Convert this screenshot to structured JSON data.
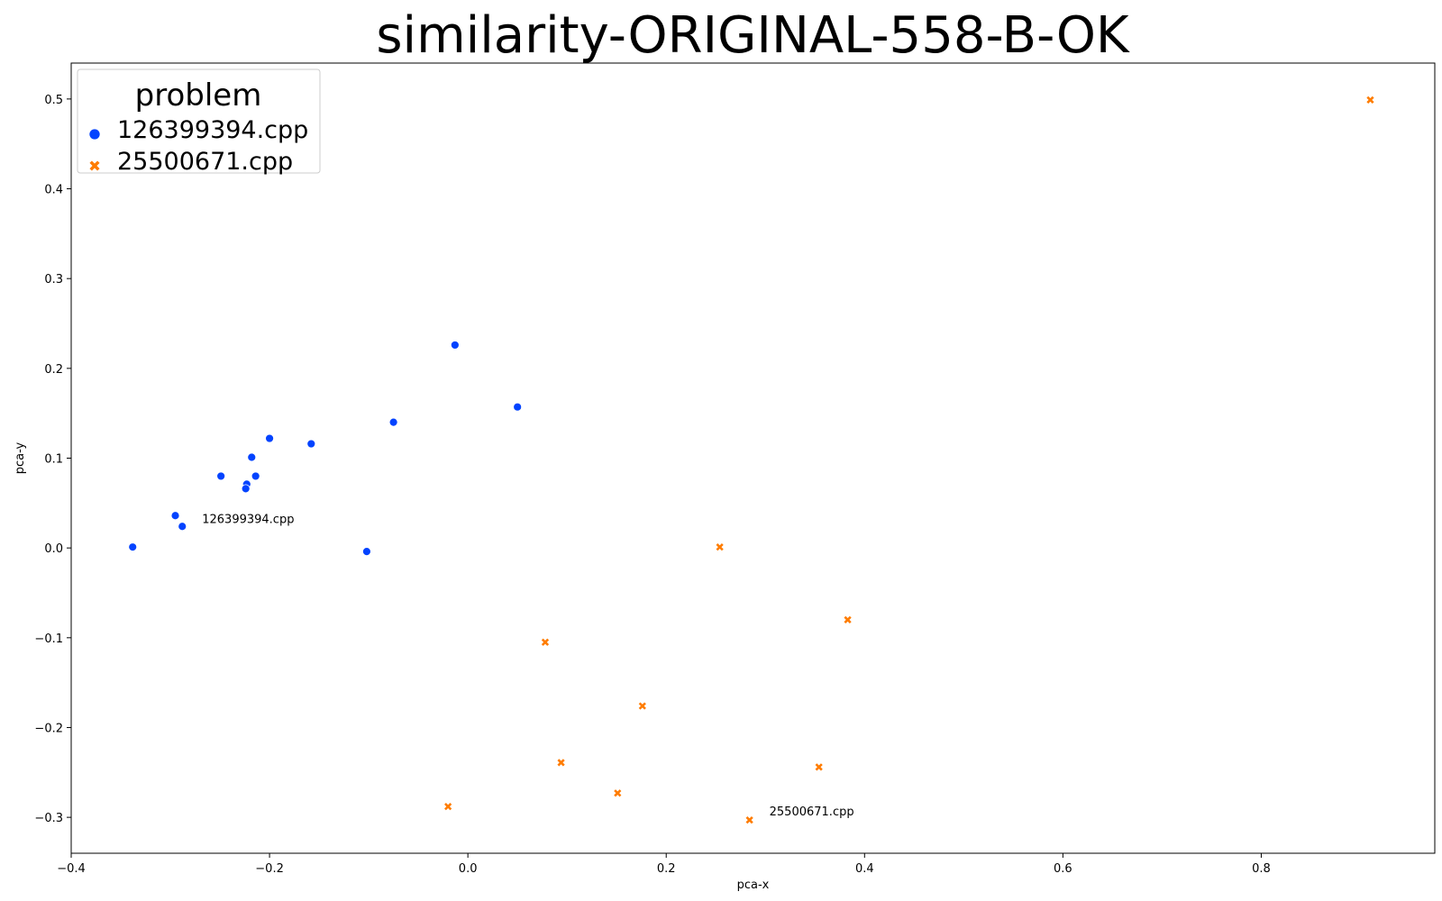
{
  "chart_data": {
    "type": "scatter",
    "title": "similarity-ORIGINAL-558-B-OK",
    "xlabel": "pca-x",
    "ylabel": "pca-y",
    "xlim": [
      -0.4,
      0.975
    ],
    "ylim": [
      -0.34,
      0.54
    ],
    "xticks": [
      -0.4,
      -0.2,
      0.0,
      0.2,
      0.4,
      0.6,
      0.8
    ],
    "xtick_labels": [
      "−0.4",
      "−0.2",
      "0.0",
      "0.2",
      "0.4",
      "0.6",
      "0.8"
    ],
    "yticks": [
      -0.3,
      -0.2,
      -0.1,
      0.0,
      0.1,
      0.2,
      0.3,
      0.4,
      0.5
    ],
    "ytick_labels": [
      "−0.3",
      "−0.2",
      "−0.1",
      "0.0",
      "0.1",
      "0.2",
      "0.3",
      "0.4",
      "0.5"
    ],
    "grid": false,
    "legend": {
      "title": "problem",
      "placement": "top-left"
    },
    "series": [
      {
        "name": "126399394.cpp",
        "color": "#0343ff",
        "marker": "circle",
        "points": [
          [
            -0.338,
            0.001
          ],
          [
            -0.295,
            0.036
          ],
          [
            -0.288,
            0.024
          ],
          [
            -0.249,
            0.08
          ],
          [
            -0.223,
            0.071
          ],
          [
            -0.224,
            0.066
          ],
          [
            -0.218,
            0.101
          ],
          [
            -0.214,
            0.08
          ],
          [
            -0.2,
            0.122
          ],
          [
            -0.158,
            0.116
          ],
          [
            -0.075,
            0.14
          ],
          [
            -0.102,
            -0.004
          ],
          [
            -0.013,
            0.226
          ],
          [
            0.05,
            0.157
          ]
        ]
      },
      {
        "name": "25500671.cpp",
        "color": "#ff7c00",
        "marker": "x",
        "points": [
          [
            0.254,
            0.001
          ],
          [
            0.383,
            -0.08
          ],
          [
            0.078,
            -0.105
          ],
          [
            0.176,
            -0.176
          ],
          [
            0.094,
            -0.239
          ],
          [
            0.354,
            -0.244
          ],
          [
            0.151,
            -0.273
          ],
          [
            -0.02,
            -0.288
          ],
          [
            0.284,
            -0.303
          ],
          [
            0.91,
            0.499
          ]
        ]
      }
    ],
    "annotations": [
      {
        "text": "126399394.cpp",
        "x": -0.268,
        "y": 0.028
      },
      {
        "text": "25500671.cpp",
        "x": 0.304,
        "y": -0.298
      }
    ]
  }
}
